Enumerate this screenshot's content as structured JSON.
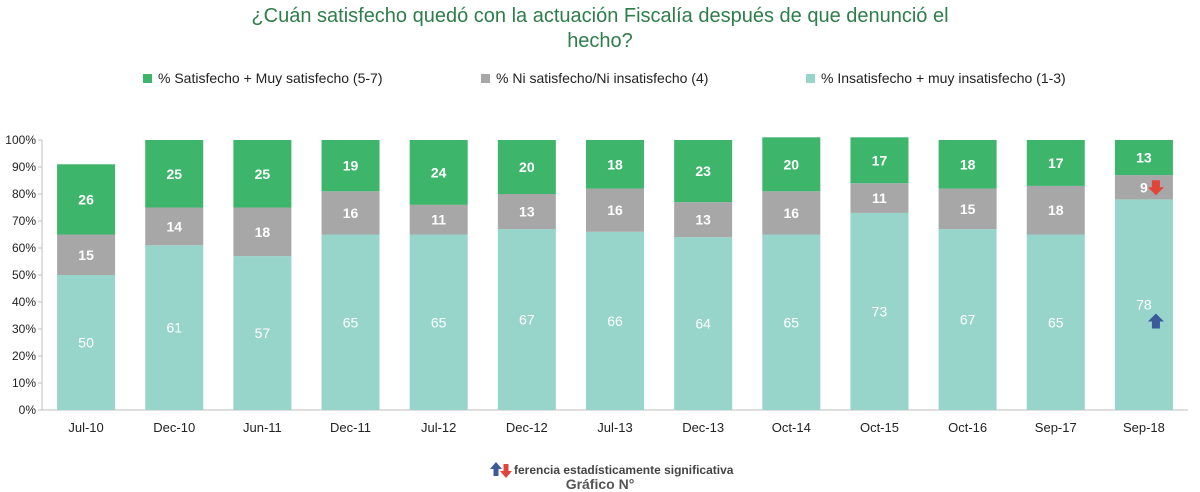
{
  "chart_data": {
    "type": "bar",
    "stacked": true,
    "title_lines": [
      "¿Cuán satisfecho quedó con la actuación Fiscalía después de que denunció el",
      "hecho?"
    ],
    "categories": [
      "Jul-10",
      "Dec-10",
      "Jun-11",
      "Dec-11",
      "Jul-12",
      "Dec-12",
      "Jul-13",
      "Dec-13",
      "Oct-14",
      "Oct-15",
      "Oct-16",
      "Sep-17",
      "Sep-18"
    ],
    "series": [
      {
        "name": "% Insatisfecho + muy insatisfecho (1-3)",
        "color": "#97d5cb",
        "label_color": "#ffffff",
        "values": [
          50,
          61,
          57,
          65,
          65,
          67,
          66,
          64,
          65,
          73,
          67,
          65,
          78
        ]
      },
      {
        "name": "% Ni satisfecho/Ni insatisfecho (4)",
        "color": "#a7a7a7",
        "label_color": "#ffffff",
        "values": [
          15,
          14,
          18,
          16,
          11,
          13,
          16,
          13,
          16,
          11,
          15,
          18,
          9
        ]
      },
      {
        "name": "% Satisfecho + Muy satisfecho (5-7)",
        "color": "#3db56a",
        "label_color": "#ffffff",
        "values": [
          26,
          25,
          25,
          19,
          24,
          20,
          18,
          23,
          20,
          17,
          18,
          17,
          13
        ]
      }
    ],
    "legend_order": [
      2,
      1,
      0
    ],
    "legend_position": "top",
    "yticks": [
      "0%",
      "10%",
      "20%",
      "30%",
      "40%",
      "50%",
      "60%",
      "70%",
      "80%",
      "90%",
      "100%"
    ],
    "ylim": [
      0,
      100
    ],
    "ylabel": "",
    "xlabel": "",
    "grid": false,
    "significance_markers": [
      {
        "category": "Sep-18",
        "series": 0,
        "direction": "up",
        "color": "#3a5a9a"
      },
      {
        "category": "Sep-18",
        "series": 1,
        "direction": "down",
        "color": "#e0453a"
      }
    ]
  },
  "footnote": "ferencia estadísticamente significativa",
  "caption": "Gráfico N°"
}
